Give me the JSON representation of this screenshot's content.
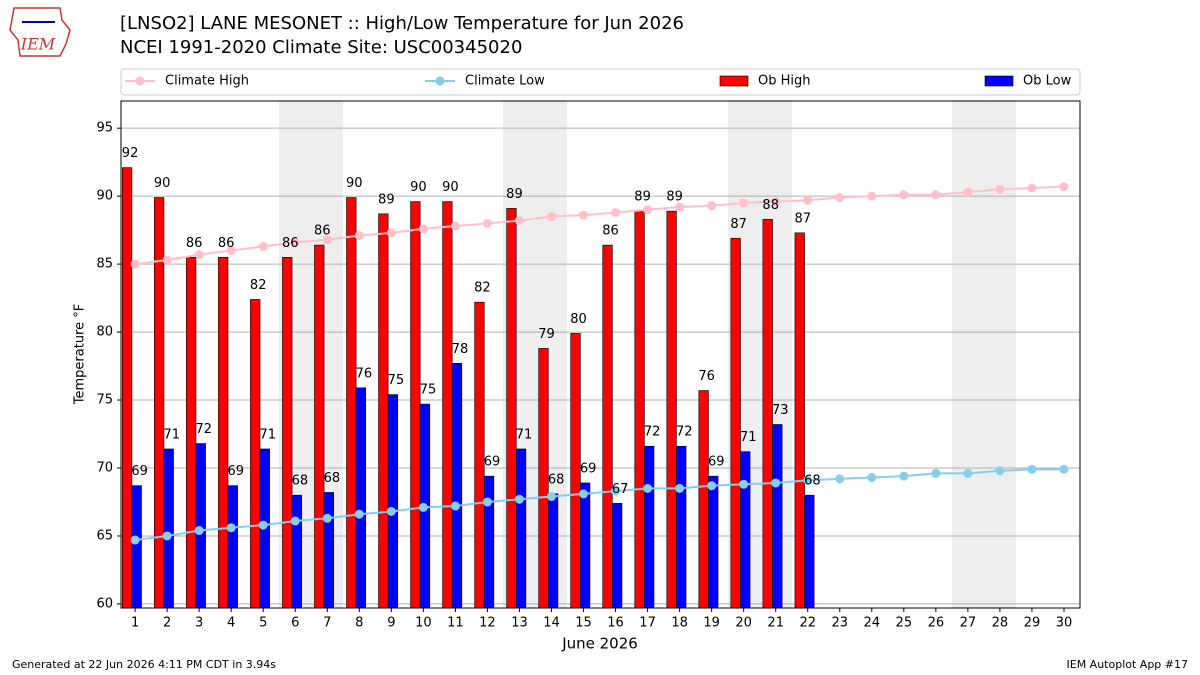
{
  "logo": "IEM",
  "chart_data": {
    "type": "bar",
    "title": "[LNSO2] LANE MESONET :: High/Low Temperature for Jun 2026",
    "subtitle": "NCEI 1991-2020 Climate Site: USC00345020",
    "x_label": "June 2026",
    "y_label": "Temperature °F",
    "x": [
      1,
      2,
      3,
      4,
      5,
      6,
      7,
      8,
      9,
      10,
      11,
      12,
      13,
      14,
      15,
      16,
      17,
      18,
      19,
      20,
      21,
      22,
      23,
      24,
      25,
      26,
      27,
      28,
      29,
      30
    ],
    "xlim": [
      0.56,
      30.5
    ],
    "xticks": [
      1,
      2,
      3,
      4,
      5,
      6,
      7,
      8,
      9,
      10,
      11,
      12,
      13,
      14,
      15,
      16,
      17,
      18,
      19,
      20,
      21,
      22,
      23,
      24,
      25,
      26,
      27,
      28,
      29,
      30
    ],
    "ylim": [
      59.7,
      97
    ],
    "yticks": [
      60,
      65,
      70,
      75,
      80,
      85,
      90,
      95
    ],
    "grid": true,
    "legend": "top",
    "series": [
      {
        "name": "Climate High",
        "type": "line",
        "color": "#ffc0cb",
        "values": [
          85.0,
          85.3,
          85.7,
          86.0,
          86.3,
          86.6,
          86.8,
          87.1,
          87.3,
          87.6,
          87.8,
          88.0,
          88.2,
          88.5,
          88.6,
          88.8,
          89.0,
          89.2,
          89.3,
          89.5,
          89.6,
          89.7,
          89.9,
          90.0,
          90.1,
          90.1,
          90.3,
          90.5,
          90.6,
          90.7
        ]
      },
      {
        "name": "Climate Low",
        "type": "line",
        "color": "#87ceeb",
        "values": [
          64.7,
          65.0,
          65.4,
          65.6,
          65.8,
          66.1,
          66.3,
          66.6,
          66.8,
          67.1,
          67.2,
          67.5,
          67.7,
          67.9,
          68.1,
          68.3,
          68.5,
          68.5,
          68.7,
          68.8,
          68.9,
          69.1,
          69.2,
          69.3,
          69.4,
          69.6,
          69.6,
          69.8,
          69.9,
          69.9
        ]
      },
      {
        "name": "Ob High",
        "type": "bar",
        "color": "#ff0000",
        "values": [
          92.1,
          89.9,
          85.5,
          85.5,
          82.4,
          85.5,
          86.4,
          89.9,
          88.7,
          89.6,
          89.6,
          82.2,
          89.1,
          78.8,
          79.9,
          86.4,
          88.9,
          88.9,
          75.7,
          86.9,
          88.3,
          87.3,
          null,
          null,
          null,
          null,
          null,
          null,
          null,
          null
        ],
        "value_labels": [
          "92",
          "90",
          "86",
          "86",
          "82",
          "86",
          "86",
          "90",
          "89",
          "90",
          "90",
          "82",
          "89",
          "79",
          "80",
          "86",
          "89",
          "89",
          "76",
          "87",
          "88",
          "87",
          null,
          null,
          null,
          null,
          null,
          null,
          null,
          null
        ]
      },
      {
        "name": "Ob Low",
        "type": "bar",
        "color": "#0000ff",
        "values": [
          68.7,
          71.4,
          71.8,
          68.7,
          71.4,
          68.0,
          68.2,
          75.9,
          75.4,
          74.7,
          77.7,
          69.4,
          71.4,
          68.1,
          68.9,
          67.4,
          71.6,
          71.6,
          69.4,
          71.2,
          73.2,
          68.0,
          null,
          null,
          null,
          null,
          null,
          null,
          null,
          null
        ],
        "value_labels": [
          "69",
          "71",
          "72",
          "69",
          "71",
          "68",
          "68",
          "76",
          "75",
          "75",
          "78",
          "69",
          "71",
          "68",
          "69",
          "67",
          "72",
          "72",
          "69",
          "71",
          "73",
          "68",
          null,
          null,
          null,
          null,
          null,
          null,
          null,
          null
        ]
      }
    ],
    "footer_left": "Generated at 22 Jun 2026 4:11 PM CDT in 3.94s",
    "footer_right": "IEM Autoplot App #17"
  }
}
